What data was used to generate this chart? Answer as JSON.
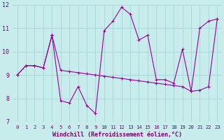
{
  "xlabel": "Windchill (Refroidissement éolien,°C)",
  "background_color": "#c8ecec",
  "grid_color": "#a8d8d8",
  "line_color": "#990099",
  "xlim": [
    -0.5,
    23.5
  ],
  "ylim": [
    7,
    12
  ],
  "yticks": [
    7,
    8,
    9,
    10,
    11,
    12
  ],
  "xticks": [
    0,
    1,
    2,
    3,
    4,
    5,
    6,
    7,
    8,
    9,
    10,
    11,
    12,
    13,
    14,
    15,
    16,
    17,
    18,
    19,
    20,
    21,
    22,
    23
  ],
  "series1_x": [
    0,
    1,
    2,
    3,
    4,
    4,
    5,
    6,
    7,
    8,
    9,
    10,
    11,
    12,
    13,
    14,
    15,
    16,
    17,
    18,
    19,
    20,
    20,
    21,
    22,
    23
  ],
  "series1_y": [
    9.0,
    9.4,
    9.4,
    9.3,
    10.7,
    10.7,
    9.2,
    9.15,
    9.1,
    9.05,
    9.0,
    8.95,
    8.9,
    8.85,
    8.8,
    8.75,
    8.7,
    8.65,
    8.6,
    8.55,
    8.5,
    8.3,
    8.3,
    8.35,
    8.5,
    11.4
  ],
  "series2_x": [
    0,
    1,
    2,
    3,
    4,
    5,
    6,
    7,
    8,
    9,
    10,
    11,
    12,
    13,
    14,
    15,
    16,
    17,
    18,
    19,
    20,
    21,
    22,
    23
  ],
  "series2_y": [
    9.0,
    9.4,
    9.4,
    9.3,
    10.7,
    7.9,
    7.8,
    8.5,
    7.7,
    7.35,
    10.9,
    11.3,
    11.9,
    11.6,
    10.5,
    10.7,
    8.8,
    8.8,
    8.65,
    10.1,
    8.3,
    11.0,
    11.3,
    11.4
  ]
}
